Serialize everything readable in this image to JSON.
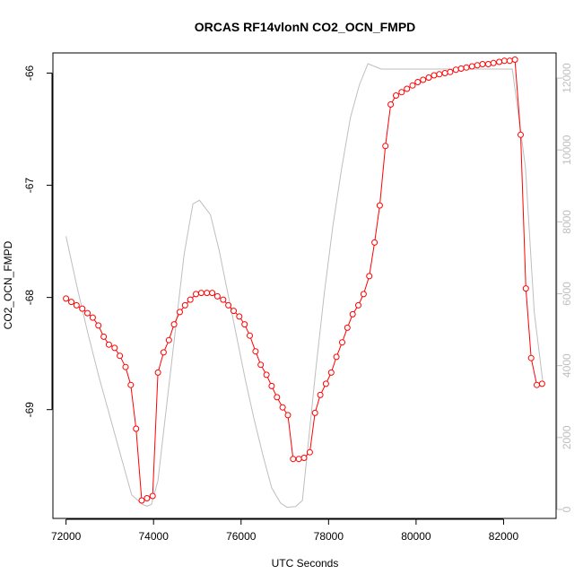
{
  "chart_data": {
    "type": "line",
    "title": "ORCAS RF14vlonN CO2_OCN_FMPD",
    "xlabel": "UTC Seconds",
    "ylabel": "CO2_OCN_FMPD",
    "xlim": [
      71700,
      83200
    ],
    "ylim": [
      -69.97,
      -65.82
    ],
    "y2lim": [
      -250,
      12700
    ],
    "x_ticks": [
      72000,
      74000,
      76000,
      78000,
      80000,
      82000
    ],
    "y_ticks": [
      -69,
      -68,
      -67,
      -66
    ],
    "y2_ticks": [
      0,
      2000,
      4000,
      6000,
      8000,
      10000,
      12000
    ],
    "grid": false,
    "legend": "none",
    "colors": {
      "primary": "#ff0000",
      "secondary": "#bebebe",
      "axis": "#000000",
      "secondary_axis": "#bebebe"
    },
    "series": [
      {
        "axis": "left",
        "style": "line+circle",
        "x": [
          72000,
          72120,
          72240,
          72370,
          72490,
          72610,
          72740,
          72860,
          72980,
          73110,
          73230,
          73360,
          73480,
          73600,
          73730,
          73850,
          73980,
          74100,
          74230,
          74350,
          74470,
          74600,
          74720,
          74840,
          74970,
          75090,
          75220,
          75340,
          75460,
          75590,
          75710,
          75830,
          75960,
          76080,
          76200,
          76330,
          76450,
          76580,
          76700,
          76820,
          76950,
          77070,
          77190,
          77320,
          77440,
          77570,
          77690,
          77810,
          77940,
          78060,
          78180,
          78310,
          78430,
          78550,
          78680,
          78800,
          78930,
          79050,
          79170,
          79300,
          79420,
          79540,
          79670,
          79790,
          79920,
          80040,
          80160,
          80290,
          80410,
          80530,
          80660,
          80780,
          80910,
          81030,
          81150,
          81280,
          81400,
          81520,
          81650,
          81770,
          81900,
          82020,
          82140,
          82260,
          82390,
          82510,
          82630,
          82760,
          82880
        ],
        "y": [
          -68.01,
          -68.04,
          -68.07,
          -68.1,
          -68.14,
          -68.18,
          -68.25,
          -68.35,
          -68.42,
          -68.45,
          -68.52,
          -68.62,
          -68.78,
          -69.17,
          -69.81,
          -69.79,
          -69.77,
          -68.67,
          -68.49,
          -68.38,
          -68.24,
          -68.13,
          -68.07,
          -68.02,
          -67.97,
          -67.96,
          -67.96,
          -67.96,
          -67.99,
          -68.02,
          -68.07,
          -68.12,
          -68.17,
          -68.24,
          -68.34,
          -68.48,
          -68.6,
          -68.69,
          -68.79,
          -68.89,
          -68.98,
          -69.05,
          -69.44,
          -69.44,
          -69.43,
          -69.38,
          -69.03,
          -68.87,
          -68.77,
          -68.67,
          -68.53,
          -68.4,
          -68.27,
          -68.15,
          -68.07,
          -67.97,
          -67.81,
          -67.51,
          -67.18,
          -66.65,
          -66.28,
          -66.2,
          -66.17,
          -66.14,
          -66.11,
          -66.08,
          -66.06,
          -66.04,
          -66.02,
          -66.01,
          -66.0,
          -65.99,
          -65.97,
          -65.96,
          -65.95,
          -65.94,
          -65.93,
          -65.92,
          -65.92,
          -65.91,
          -65.9,
          -65.89,
          -65.89,
          -65.88,
          -66.55,
          -67.92,
          -68.54,
          -68.78,
          -68.77
        ]
      },
      {
        "axis": "right",
        "style": "line",
        "x": [
          72000,
          72250,
          72500,
          72750,
          73000,
          73250,
          73500,
          73750,
          73850,
          73950,
          74100,
          74300,
          74500,
          74700,
          74900,
          75050,
          75300,
          75500,
          75700,
          75900,
          76100,
          76300,
          76500,
          76700,
          76900,
          77050,
          77250,
          77400,
          77500,
          77700,
          77900,
          78100,
          78300,
          78500,
          78700,
          78900,
          79100,
          79200,
          79400,
          79700,
          80000,
          80500,
          81000,
          81500,
          82000,
          82200,
          82500,
          82700,
          82900
        ],
        "y": [
          7600,
          6200,
          4900,
          3700,
          2600,
          1500,
          400,
          140,
          90,
          140,
          800,
          2900,
          5000,
          7100,
          8500,
          8600,
          8200,
          7200,
          6000,
          4800,
          3600,
          2500,
          1500,
          600,
          180,
          60,
          80,
          250,
          1400,
          3800,
          6000,
          7900,
          9500,
          10900,
          11800,
          12400,
          12300,
          12250,
          12250,
          12250,
          12250,
          12250,
          12250,
          12250,
          12250,
          12250,
          9500,
          5500,
          3500
        ]
      }
    ]
  }
}
